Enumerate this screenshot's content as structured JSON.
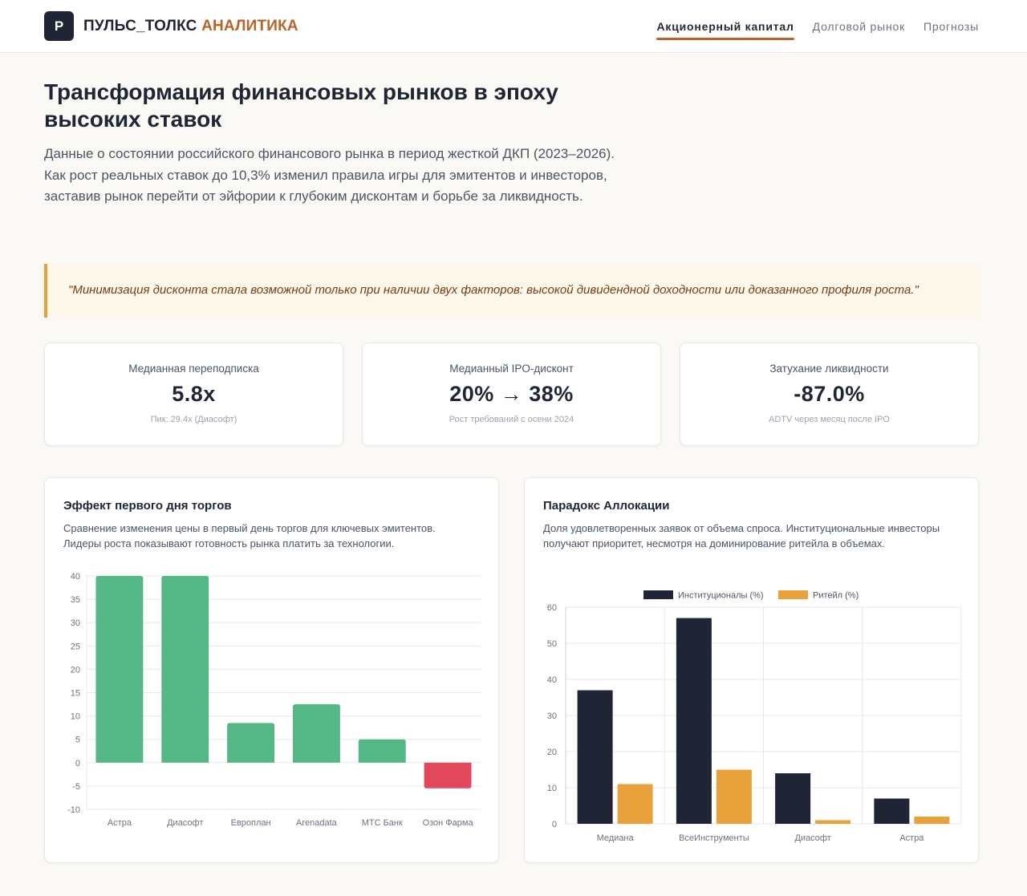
{
  "header": {
    "logo_letter": "P",
    "brand_part1": "ПУЛЬС_ТОЛКС",
    "brand_part2": "АНАЛИТИКА",
    "nav": [
      {
        "label": "Акционерный капитал",
        "active": true
      },
      {
        "label": "Долговой рынок",
        "active": false
      },
      {
        "label": "Прогнозы",
        "active": false
      }
    ]
  },
  "hero": {
    "title": "Трансформация финансовых рынков в эпоху высоких ставок",
    "text": "Данные о состоянии российского финансового рынка в период жесткой ДКП (2023–2026). Как рост реальных ставок до 10,3% изменил правила игры для эмитентов и инвесторов, заставив рынок перейти от эйфории к глубоким дисконтам и борьбе за ликвидность."
  },
  "quote": "\"Минимизация дисконта стала возможной только при наличии двух факторов: высокой дивидендной доходности или доказанного профиля роста.\"",
  "kpis": [
    {
      "label": "Медианная переподписка",
      "value": "5.8x",
      "note": "Пик: 29.4x (Диасофт)"
    },
    {
      "label": "Медианный IPO-дисконт",
      "value": "20% → 38%",
      "note": "Рост требований с осени 2024"
    },
    {
      "label": "Затухание ликвидности",
      "value": "-87.0%",
      "note": "ADTV через месяц после IPO"
    }
  ],
  "colors": {
    "accent": "#b8632a",
    "positive": "#55b786",
    "negative": "#e2485c",
    "institutional": "#1f2535",
    "retail": "#e9a23b"
  },
  "charts": {
    "first_day": {
      "title": "Эффект первого дня торгов",
      "description": "Сравнение изменения цены в первый день торгов для ключевых эмитентов. Лидеры роста показывают готовность рынка платить за технологии."
    },
    "allocation": {
      "title": "Парадокс Аллокации",
      "description": "Доля удовлетворенных заявок от объема спроса. Институциональные инвесторы получают приоритет, несмотря на доминирование ритейла в объемах."
    }
  },
  "chart_data": [
    {
      "type": "bar",
      "title": "Эффект первого дня торгов",
      "categories": [
        "Астра",
        "Диасофт",
        "Европлан",
        "Arenadata",
        "МТС Банк",
        "Озон Фарма"
      ],
      "values": [
        40,
        40,
        8.5,
        12.5,
        5,
        -5.5
      ],
      "yticks": [
        40,
        35,
        30,
        25,
        20,
        15,
        10,
        5,
        0,
        -5,
        -10
      ],
      "ylim": [
        -10,
        40
      ],
      "grid": true,
      "legend": "none"
    },
    {
      "type": "bar",
      "title": "Парадокс Аллокации",
      "categories": [
        "Медиана",
        "ВсеИнструменты",
        "Диасофт",
        "Астра"
      ],
      "series": [
        {
          "name": "Институционалы (%)",
          "values": [
            37,
            57,
            14,
            7
          ]
        },
        {
          "name": "Ритейл (%)",
          "values": [
            11,
            15,
            1,
            2
          ]
        }
      ],
      "yticks": [
        60,
        50,
        40,
        30,
        20,
        10,
        0
      ],
      "ylim": [
        0,
        60
      ],
      "grid": true,
      "legend": "top"
    }
  ]
}
